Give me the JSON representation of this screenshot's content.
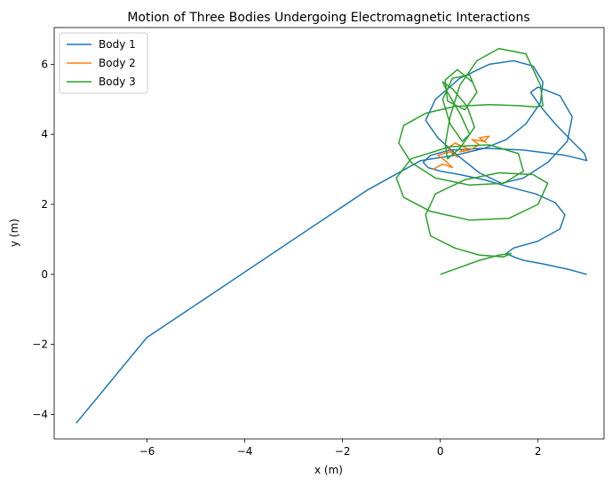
{
  "chart_data": {
    "type": "line",
    "title": "Motion of Three Bodies Undergoing Electromagnetic Interactions",
    "xlabel": "x (m)",
    "ylabel": "y (m)",
    "xlim": [
      -7.9,
      3.35
    ],
    "ylim": [
      -4.7,
      7.05
    ],
    "xticks": [
      -6,
      -4,
      -2,
      0,
      2
    ],
    "yticks": [
      -4,
      -2,
      0,
      2,
      4,
      6
    ],
    "xtick_labels": [
      "−6",
      "−4",
      "−2",
      "0",
      "2"
    ],
    "ytick_labels": [
      "−4",
      "−2",
      "0",
      "2",
      "4",
      "6"
    ],
    "grid": false,
    "legend_position": "top-left",
    "series": [
      {
        "name": "Body 1",
        "color": "#1f77b4",
        "x": [
          3.0,
          2.6,
          2.1,
          1.7,
          1.5,
          1.35,
          1.5,
          2.0,
          2.45,
          2.55,
          2.35,
          1.95,
          1.4,
          0.9,
          0.4,
          0.0,
          -0.25,
          -0.35,
          -0.2,
          0.2,
          0.9,
          1.7,
          2.55,
          3.0,
          2.95,
          2.7,
          2.35,
          2.05,
          1.85,
          2.0,
          2.45,
          2.7,
          2.6,
          2.2,
          1.7,
          1.25,
          0.8,
          0.35,
          -0.05,
          -0.3,
          -0.1,
          0.4,
          1.0,
          1.5,
          1.9,
          2.1,
          2.05,
          1.75,
          1.35,
          0.9,
          0.3,
          -0.4,
          -1.5,
          -3.0,
          -4.5,
          -6.0,
          -7.45
        ],
        "y": [
          0.0,
          0.15,
          0.3,
          0.4,
          0.5,
          0.6,
          0.75,
          0.95,
          1.3,
          1.7,
          2.05,
          2.3,
          2.5,
          2.7,
          2.85,
          2.95,
          3.05,
          3.2,
          3.4,
          3.55,
          3.6,
          3.55,
          3.4,
          3.25,
          3.45,
          3.8,
          4.3,
          4.8,
          5.2,
          5.35,
          5.1,
          4.5,
          3.8,
          3.2,
          2.75,
          2.6,
          2.9,
          3.4,
          3.9,
          4.4,
          5.0,
          5.6,
          6.0,
          6.1,
          5.95,
          5.5,
          4.9,
          4.3,
          3.85,
          3.6,
          3.4,
          3.25,
          2.4,
          1.0,
          -0.4,
          -1.8,
          -4.25
        ]
      },
      {
        "name": "Body 2",
        "color": "#ff7f0e",
        "x": [
          -0.15,
          0.05,
          0.25,
          0.1,
          -0.05,
          0.2,
          0.35,
          0.15,
          0.3,
          0.55,
          0.4,
          0.6,
          0.8,
          0.65,
          0.9,
          1.0,
          0.8,
          0.95
        ],
        "y": [
          3.0,
          3.15,
          3.05,
          3.25,
          3.4,
          3.5,
          3.35,
          3.6,
          3.75,
          3.6,
          3.5,
          3.55,
          3.7,
          3.85,
          3.8,
          3.95,
          3.9,
          3.75
        ]
      },
      {
        "name": "Body 3",
        "color": "#2ca02c",
        "x": [
          0.0,
          0.4,
          0.8,
          1.2,
          1.45,
          1.3,
          0.8,
          0.3,
          -0.2,
          -0.3,
          -0.1,
          0.5,
          1.2,
          1.9,
          2.2,
          2.0,
          1.4,
          0.6,
          -0.2,
          -0.75,
          -0.9,
          -0.6,
          0.2,
          1.0,
          1.6,
          1.7,
          1.3,
          0.6,
          -0.1,
          -0.6,
          -0.85,
          -0.75,
          -0.3,
          0.3,
          1.0,
          1.6,
          1.95,
          2.1,
          2.05,
          1.75,
          1.2,
          0.75,
          0.4,
          0.2,
          0.1,
          0.15,
          0.4,
          0.7,
          0.55,
          0.25,
          0.05,
          0.15,
          0.4,
          0.6,
          0.45,
          0.2,
          0.05,
          0.25,
          0.6,
          0.75,
          0.5,
          0.15,
          0.1,
          0.35,
          0.65
        ],
        "y": [
          0.0,
          0.2,
          0.4,
          0.55,
          0.6,
          0.5,
          0.55,
          0.75,
          1.1,
          1.7,
          2.3,
          2.7,
          2.9,
          2.85,
          2.6,
          2.0,
          1.6,
          1.55,
          1.8,
          2.2,
          2.75,
          3.3,
          3.65,
          3.7,
          3.45,
          2.95,
          2.6,
          2.55,
          2.75,
          3.2,
          3.75,
          4.25,
          4.6,
          4.8,
          4.85,
          4.82,
          4.78,
          4.82,
          5.4,
          6.3,
          6.45,
          6.1,
          5.4,
          4.5,
          3.7,
          3.3,
          3.6,
          4.2,
          4.8,
          5.3,
          5.5,
          5.2,
          4.6,
          4.0,
          3.8,
          4.3,
          5.0,
          5.6,
          5.7,
          5.2,
          4.7,
          4.95,
          5.55,
          5.85,
          5.5
        ]
      }
    ]
  }
}
